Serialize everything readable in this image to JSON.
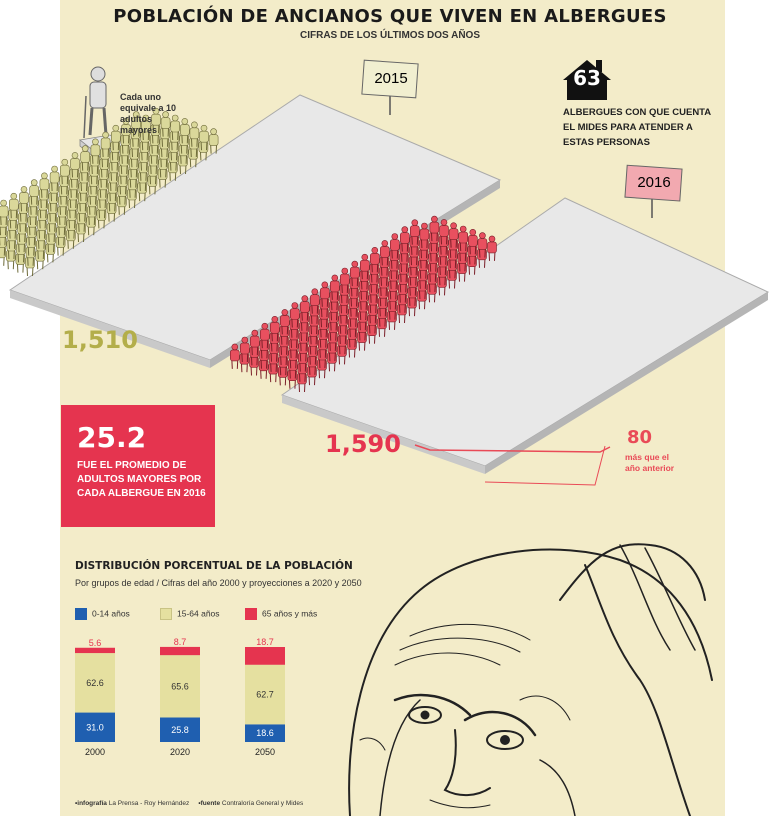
{
  "header": {
    "title": "POBLACIÓN DE ANCIANOS QUE VIVEN EN ALBERGUES",
    "subtitle": "CIFRAS DE LOS ÚLTIMOS DOS AÑOS"
  },
  "icon_legend": "Cada uno equivale a 10 adultos mayores",
  "population": [
    {
      "year": "2015",
      "count_label": "1,510",
      "count": 1510
    },
    {
      "year": "2016",
      "count_label": "1,590",
      "count": 1590
    }
  ],
  "shelters": {
    "count": "63",
    "text": "ALBERGUES CON QUE CUENTA EL MIDES PARA ATENDER A ESTAS PERSONAS"
  },
  "difference": {
    "value": "80",
    "text": "más que el año anterior"
  },
  "average": {
    "value": "25.2",
    "text": "FUE EL PROMEDIO DE ADULTOS MAYORES POR CADA ALBERGUE EN 2016"
  },
  "chart_data": {
    "type": "bar",
    "stacked": true,
    "title": "DISTRIBUCIÓN PORCENTUAL DE LA POBLACIÓN",
    "subtitle": "Por grupos de edad / Cifras del año 2000 y proyecciones a 2020 y 2050",
    "categories": [
      "2000",
      "2020",
      "2050"
    ],
    "series": [
      {
        "name": "0-14 años",
        "color": "#1f5fb0",
        "values": [
          31.0,
          25.8,
          18.6
        ],
        "labels": [
          "31.0",
          "25.8",
          "18.6"
        ]
      },
      {
        "name": "15-64 años",
        "color": "#e5e0a0",
        "values": [
          62.6,
          65.6,
          62.7
        ],
        "labels": [
          "62.6",
          "65.6",
          "62.7"
        ]
      },
      {
        "name": "65 años y más",
        "color": "#e5344f",
        "values": [
          5.6,
          8.7,
          18.7
        ],
        "labels": [
          "5.6",
          "8.7",
          "18.7"
        ]
      }
    ],
    "ylim": [
      0,
      100
    ]
  },
  "credits": {
    "infographic_label": "•infografía",
    "infographic_value": "La Prensa - Roy Hernández",
    "source_label": "•fuente",
    "source_value": "Contraloría General y Mides"
  },
  "colors": {
    "background": "#f3ecc9",
    "figure_2015": "#dad89a",
    "figure_2016": "#e8505f",
    "accent": "#e5344f"
  }
}
